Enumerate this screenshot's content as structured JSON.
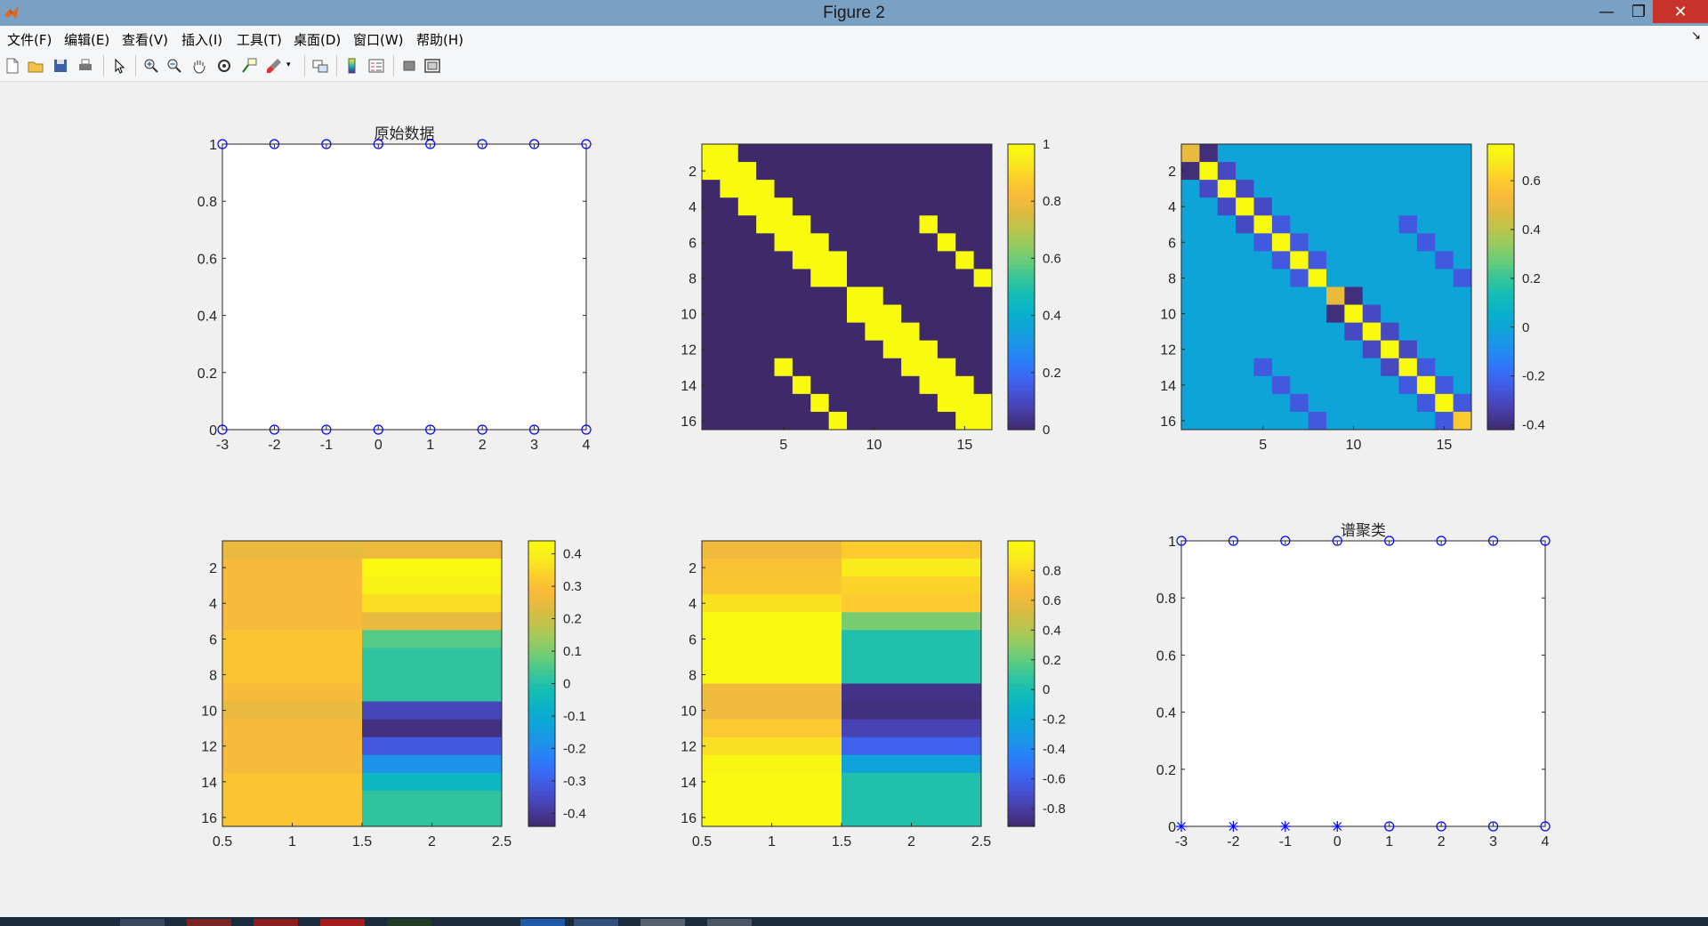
{
  "window": {
    "title": "Figure 2",
    "minimize": "—",
    "maximize": "❐",
    "close": "✕"
  },
  "menu": [
    {
      "label": "文件(F)"
    },
    {
      "label": "编辑(E)"
    },
    {
      "label": "查看(V)"
    },
    {
      "label": "插入(I)"
    },
    {
      "label": "工具(T)"
    },
    {
      "label": "桌面(D)"
    },
    {
      "label": "窗口(W)"
    },
    {
      "label": "帮助(H)"
    }
  ],
  "toolbar": [
    "new-figure-icon",
    "open-file-icon",
    "save-icon",
    "print-icon",
    "pointer-icon",
    "zoom-in-icon",
    "zoom-out-icon",
    "pan-hand-icon",
    "rotate-3d-icon",
    "data-cursor-icon",
    "brush-icon",
    "link-plot-icon",
    "colorbar-icon",
    "legend-icon",
    "hide-plot-tools-icon",
    "show-plot-tools-icon"
  ],
  "colors": {
    "marker": "#0000ff",
    "axes_bg": "#ffffff",
    "figure_bg": "#f0f0f0"
  },
  "chart_data": [
    {
      "id": "p1",
      "type": "scatter",
      "title": "原始数据",
      "xlim": [
        -3,
        4
      ],
      "ylim": [
        0,
        1
      ],
      "xticks": [
        -3,
        -2,
        -1,
        0,
        1,
        2,
        3,
        4
      ],
      "yticks": [
        0,
        0.2,
        0.4,
        0.6,
        0.8,
        1
      ],
      "series": [
        {
          "marker": "o",
          "x": [
            -3,
            -2,
            -1,
            0,
            1,
            2,
            3,
            4,
            -3,
            -2,
            -1,
            0,
            1,
            2,
            3,
            4
          ],
          "y": [
            1,
            1,
            1,
            1,
            1,
            1,
            1,
            1,
            0,
            0,
            0,
            0,
            0,
            0,
            0,
            0
          ]
        }
      ]
    },
    {
      "id": "p2",
      "type": "heatmap",
      "title": "",
      "n": 16,
      "xticks": [
        5,
        10,
        15
      ],
      "yticks": [
        2,
        4,
        6,
        8,
        10,
        12,
        14,
        16
      ],
      "clim": [
        0,
        1
      ],
      "cticks": [
        0,
        0.2,
        0.4,
        0.6,
        0.8,
        1
      ],
      "values": [
        [
          1,
          1,
          0,
          0,
          0,
          0,
          0,
          0,
          0,
          0,
          0,
          0,
          0,
          0,
          0,
          0
        ],
        [
          1,
          1,
          1,
          0,
          0,
          0,
          0,
          0,
          0,
          0,
          0,
          0,
          0,
          0,
          0,
          0
        ],
        [
          0,
          1,
          1,
          1,
          0,
          0,
          0,
          0,
          0,
          0,
          0,
          0,
          0,
          0,
          0,
          0
        ],
        [
          0,
          0,
          1,
          1,
          1,
          0,
          0,
          0,
          0,
          0,
          0,
          0,
          0,
          0,
          0,
          0
        ],
        [
          0,
          0,
          0,
          1,
          1,
          1,
          0,
          0,
          0,
          0,
          0,
          0,
          1,
          0,
          0,
          0
        ],
        [
          0,
          0,
          0,
          0,
          1,
          1,
          1,
          0,
          0,
          0,
          0,
          0,
          0,
          1,
          0,
          0
        ],
        [
          0,
          0,
          0,
          0,
          0,
          1,
          1,
          1,
          0,
          0,
          0,
          0,
          0,
          0,
          1,
          0
        ],
        [
          0,
          0,
          0,
          0,
          0,
          0,
          1,
          1,
          0,
          0,
          0,
          0,
          0,
          0,
          0,
          1
        ],
        [
          0,
          0,
          0,
          0,
          0,
          0,
          0,
          0,
          1,
          1,
          0,
          0,
          0,
          0,
          0,
          0
        ],
        [
          0,
          0,
          0,
          0,
          0,
          0,
          0,
          0,
          1,
          1,
          1,
          0,
          0,
          0,
          0,
          0
        ],
        [
          0,
          0,
          0,
          0,
          0,
          0,
          0,
          0,
          0,
          1,
          1,
          1,
          0,
          0,
          0,
          0
        ],
        [
          0,
          0,
          0,
          0,
          0,
          0,
          0,
          0,
          0,
          0,
          1,
          1,
          1,
          0,
          0,
          0
        ],
        [
          0,
          0,
          0,
          0,
          1,
          0,
          0,
          0,
          0,
          0,
          0,
          1,
          1,
          1,
          0,
          0
        ],
        [
          0,
          0,
          0,
          0,
          0,
          1,
          0,
          0,
          0,
          0,
          0,
          0,
          1,
          1,
          1,
          0
        ],
        [
          0,
          0,
          0,
          0,
          0,
          0,
          1,
          0,
          0,
          0,
          0,
          0,
          0,
          1,
          1,
          1
        ],
        [
          0,
          0,
          0,
          0,
          0,
          0,
          0,
          1,
          0,
          0,
          0,
          0,
          0,
          0,
          1,
          1
        ]
      ]
    },
    {
      "id": "p3",
      "type": "heatmap",
      "title": "",
      "n": 16,
      "xticks": [
        5,
        10,
        15
      ],
      "yticks": [
        2,
        4,
        6,
        8,
        10,
        12,
        14,
        16
      ],
      "clim": [
        -0.42,
        0.75
      ],
      "cticks": [
        -0.4,
        -0.2,
        0,
        0.2,
        0.4,
        0.6
      ],
      "values": [
        [
          0.5,
          -0.4,
          0,
          0,
          0,
          0,
          0,
          0,
          0,
          0,
          0,
          0,
          0,
          0,
          0,
          0
        ],
        [
          -0.4,
          0.75,
          -0.3,
          0,
          0,
          0,
          0,
          0,
          0,
          0,
          0,
          0,
          0,
          0,
          0,
          0
        ],
        [
          0,
          -0.3,
          0.75,
          -0.3,
          0,
          0,
          0,
          0,
          0,
          0,
          0,
          0,
          0,
          0,
          0,
          0
        ],
        [
          0,
          0,
          -0.3,
          0.75,
          -0.3,
          0,
          0,
          0,
          0,
          0,
          0,
          0,
          0,
          0,
          0,
          0
        ],
        [
          0,
          0,
          0,
          -0.3,
          0.75,
          -0.25,
          0,
          0,
          0,
          0,
          0,
          0,
          -0.25,
          0,
          0,
          0
        ],
        [
          0,
          0,
          0,
          0,
          -0.25,
          0.75,
          -0.25,
          0,
          0,
          0,
          0,
          0,
          0,
          -0.25,
          0,
          0
        ],
        [
          0,
          0,
          0,
          0,
          0,
          -0.25,
          0.75,
          -0.25,
          0,
          0,
          0,
          0,
          0,
          0,
          -0.25,
          0
        ],
        [
          0,
          0,
          0,
          0,
          0,
          0,
          -0.25,
          0.75,
          0,
          0,
          0,
          0,
          0,
          0,
          0,
          -0.25
        ],
        [
          0,
          0,
          0,
          0,
          0,
          0,
          0,
          0,
          0.5,
          -0.4,
          0,
          0,
          0,
          0,
          0,
          0
        ],
        [
          0,
          0,
          0,
          0,
          0,
          0,
          0,
          0,
          -0.4,
          0.75,
          -0.3,
          0,
          0,
          0,
          0,
          0
        ],
        [
          0,
          0,
          0,
          0,
          0,
          0,
          0,
          0,
          0,
          -0.3,
          0.75,
          -0.3,
          0,
          0,
          0,
          0
        ],
        [
          0,
          0,
          0,
          0,
          0,
          0,
          0,
          0,
          0,
          0,
          -0.3,
          0.75,
          -0.3,
          0,
          0,
          0
        ],
        [
          0,
          0,
          0,
          0,
          -0.25,
          0,
          0,
          0,
          0,
          0,
          0,
          -0.3,
          0.75,
          -0.25,
          0,
          0
        ],
        [
          0,
          0,
          0,
          0,
          0,
          -0.25,
          0,
          0,
          0,
          0,
          0,
          0,
          -0.25,
          0.75,
          -0.25,
          0
        ],
        [
          0,
          0,
          0,
          0,
          0,
          0,
          -0.25,
          0,
          0,
          0,
          0,
          0,
          0,
          -0.25,
          0.75,
          -0.25
        ],
        [
          0,
          0,
          0,
          0,
          0,
          0,
          0,
          -0.25,
          0,
          0,
          0,
          0,
          0,
          0,
          -0.25,
          0.6
        ]
      ]
    },
    {
      "id": "p4",
      "type": "heatmap",
      "title": "",
      "rows": 16,
      "cols": 2,
      "xlim": [
        0.5,
        2.5
      ],
      "xticks": [
        0.5,
        1,
        1.5,
        2,
        2.5
      ],
      "yticks": [
        2,
        4,
        6,
        8,
        10,
        12,
        14,
        16
      ],
      "clim": [
        -0.44,
        0.44
      ],
      "cticks": [
        -0.4,
        -0.3,
        -0.2,
        -0.1,
        0,
        0.1,
        0.2,
        0.3,
        0.4
      ],
      "values": [
        [
          0.25,
          0.26
        ],
        [
          0.28,
          0.43
        ],
        [
          0.28,
          0.41
        ],
        [
          0.28,
          0.36
        ],
        [
          0.28,
          0.25
        ],
        [
          0.31,
          0.06
        ],
        [
          0.31,
          0.02
        ],
        [
          0.31,
          0.02
        ],
        [
          0.28,
          0.02
        ],
        [
          0.25,
          -0.36
        ],
        [
          0.28,
          -0.42
        ],
        [
          0.28,
          -0.31
        ],
        [
          0.28,
          -0.18
        ],
        [
          0.31,
          -0.05
        ],
        [
          0.31,
          0.02
        ],
        [
          0.31,
          0.02
        ]
      ]
    },
    {
      "id": "p5",
      "type": "heatmap",
      "title": "",
      "rows": 16,
      "cols": 2,
      "xlim": [
        0.5,
        2.5
      ],
      "xticks": [
        0.5,
        1,
        1.5,
        2,
        2.5
      ],
      "yticks": [
        2,
        4,
        6,
        8,
        10,
        12,
        14,
        16
      ],
      "clim": [
        -0.92,
        1.0
      ],
      "cticks": [
        -0.8,
        -0.6,
        -0.4,
        -0.2,
        0,
        0.2,
        0.4,
        0.6,
        0.8
      ],
      "values": [
        [
          0.62,
          0.76
        ],
        [
          0.7,
          0.89
        ],
        [
          0.73,
          0.79
        ],
        [
          0.85,
          0.75
        ],
        [
          0.98,
          0.26
        ],
        [
          0.98,
          0.03
        ],
        [
          0.98,
          0.03
        ],
        [
          0.98,
          0.03
        ],
        [
          0.62,
          -0.86
        ],
        [
          0.62,
          -0.88
        ],
        [
          0.74,
          -0.76
        ],
        [
          0.84,
          -0.59
        ],
        [
          0.96,
          -0.24
        ],
        [
          0.98,
          0.03
        ],
        [
          0.98,
          0.03
        ],
        [
          0.98,
          0.03
        ]
      ]
    },
    {
      "id": "p6",
      "type": "scatter",
      "title": "谱聚类",
      "xlim": [
        -3,
        4
      ],
      "ylim": [
        0,
        1
      ],
      "xticks": [
        -3,
        -2,
        -1,
        0,
        1,
        2,
        3,
        4
      ],
      "yticks": [
        0,
        0.2,
        0.4,
        0.6,
        0.8,
        1
      ],
      "series": [
        {
          "marker": "o",
          "x": [
            -3,
            -2,
            -1,
            0,
            1,
            2,
            3,
            4,
            1,
            2,
            3,
            4
          ],
          "y": [
            1,
            1,
            1,
            1,
            1,
            1,
            1,
            1,
            0,
            0,
            0,
            0
          ]
        },
        {
          "marker": "*",
          "x": [
            -3,
            -2,
            -1,
            0
          ],
          "y": [
            0,
            0,
            0,
            0
          ]
        }
      ]
    }
  ]
}
